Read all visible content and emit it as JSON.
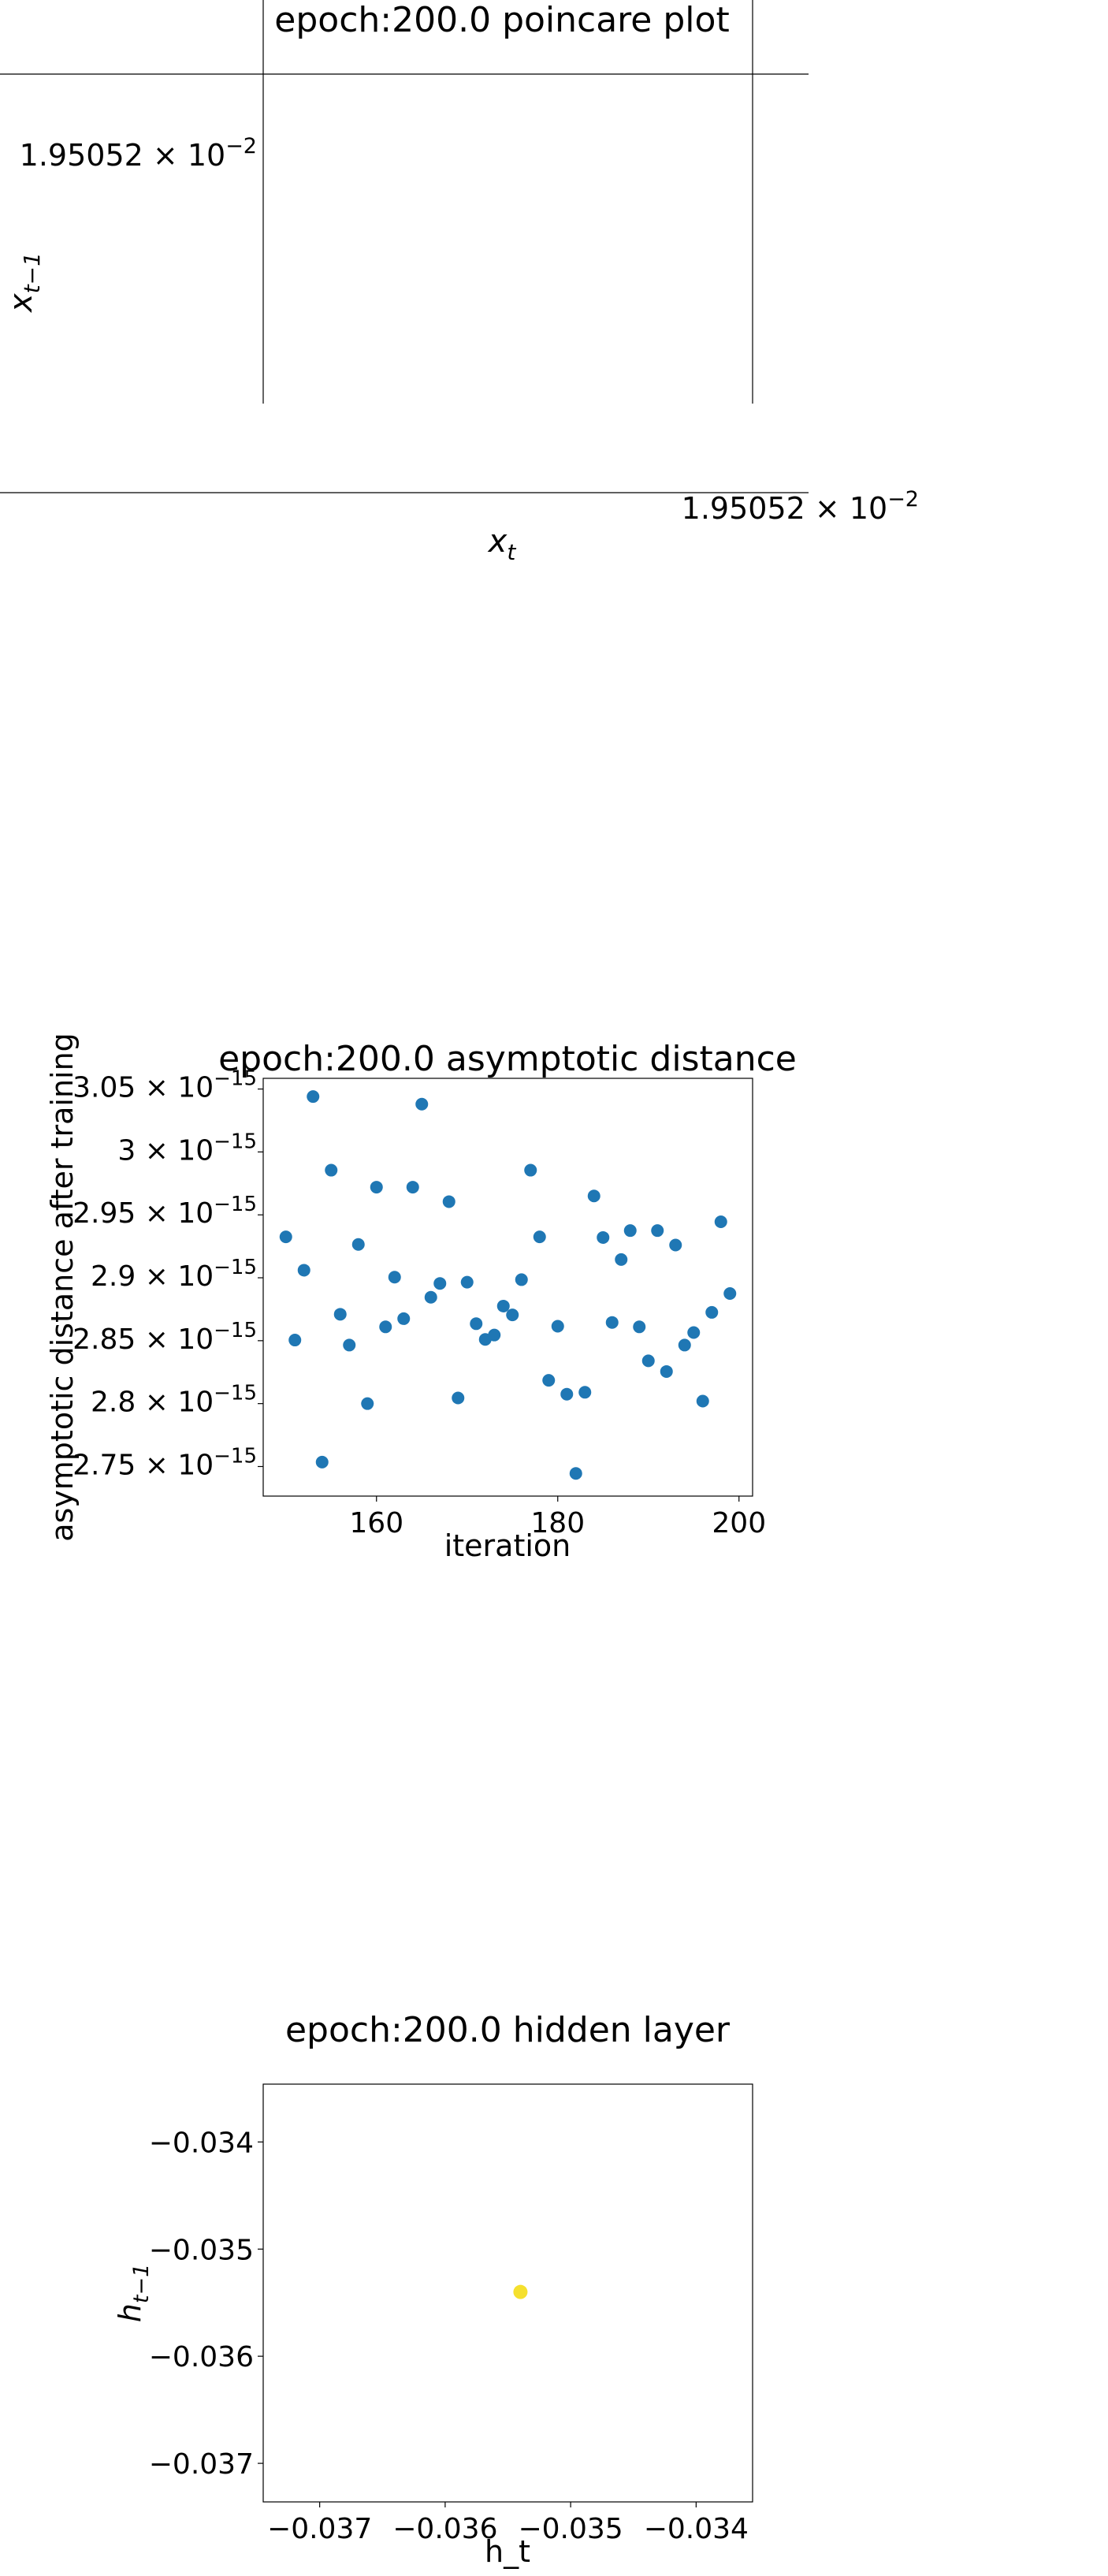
{
  "chart_data": [
    {
      "type": "scatter",
      "title": "epoch:200.0 poincare plot",
      "xlabel": "x",
      "xlabel_sub": "t",
      "ylabel": "x",
      "ylabel_sub": "t−1",
      "xtick": {
        "mantissa": "1.95052",
        "times": "×",
        "base": "10",
        "exp": "−2"
      },
      "ytick": {
        "mantissa": "1.95052",
        "times": "×",
        "base": "10",
        "exp": "−2"
      },
      "x": [],
      "y": []
    },
    {
      "type": "scatter",
      "title": "epoch:200.0 asymptotic distance",
      "xlabel": "iteration",
      "ylabel": "asymptotic distance after training",
      "color": "#1f77b4",
      "xlim": [
        147.5,
        201.5
      ],
      "ylim": [
        2.7265e-15,
        3.0585e-15
      ],
      "xticks": [
        160,
        180,
        200
      ],
      "xtick_labels": [
        "160",
        "180",
        "200"
      ],
      "yticks": [
        2.75e-15,
        2.8e-15,
        2.85e-15,
        2.9e-15,
        2.95e-15,
        3e-15,
        3.05e-15
      ],
      "ytick_labels": [
        {
          "mantissa": "2.75",
          "times": "×",
          "base": "10",
          "exp": "−15"
        },
        {
          "mantissa": "2.8",
          "times": "×",
          "base": "10",
          "exp": "−15"
        },
        {
          "mantissa": "2.85",
          "times": "×",
          "base": "10",
          "exp": "−15"
        },
        {
          "mantissa": "2.9",
          "times": "×",
          "base": "10",
          "exp": "−15"
        },
        {
          "mantissa": "2.95",
          "times": "×",
          "base": "10",
          "exp": "−15"
        },
        {
          "mantissa": "3",
          "times": "×",
          "base": "10",
          "exp": "−15"
        },
        {
          "mantissa": "3.05",
          "times": "×",
          "base": "10",
          "exp": "−15"
        }
      ],
      "x": [
        150,
        151,
        152,
        153,
        154,
        155,
        156,
        157,
        158,
        159,
        160,
        161,
        162,
        163,
        164,
        165,
        166,
        167,
        168,
        169,
        170,
        171,
        172,
        173,
        174,
        175,
        176,
        177,
        178,
        179,
        180,
        181,
        182,
        183,
        184,
        185,
        186,
        187,
        188,
        189,
        190,
        191,
        192,
        193,
        194,
        195,
        196,
        197,
        198,
        199
      ],
      "y": [
        2.9325e-15,
        2.8505e-15,
        2.906e-15,
        3.044e-15,
        2.7535e-15,
        2.9855e-15,
        2.871e-15,
        2.8465e-15,
        2.9265e-15,
        2.8e-15,
        2.972e-15,
        2.861e-15,
        2.9005e-15,
        2.8675e-15,
        2.972e-15,
        3.038e-15,
        2.8845e-15,
        2.8955e-15,
        2.9605e-15,
        2.8045e-15,
        2.8965e-15,
        2.8635e-15,
        2.851e-15,
        2.8545e-15,
        2.8775e-15,
        2.8705e-15,
        2.8985e-15,
        2.9855e-15,
        2.9325e-15,
        2.8185e-15,
        2.8615e-15,
        2.8075e-15,
        2.7445e-15,
        2.809e-15,
        2.965e-15,
        2.932e-15,
        2.8645e-15,
        2.9145e-15,
        2.9375e-15,
        2.861e-15,
        2.834e-15,
        2.9375e-15,
        2.8255e-15,
        2.926e-15,
        2.8465e-15,
        2.8565e-15,
        2.802e-15,
        2.8725e-15,
        2.9445e-15,
        2.8875e-15
      ]
    },
    {
      "type": "scatter",
      "title": "epoch:200.0 hidden layer",
      "xlabel": "h_t",
      "ylabel": "h",
      "ylabel_sub": "t−1",
      "color": "#f5e02e",
      "xlim": [
        -0.03745,
        -0.03355
      ],
      "ylim": [
        -0.03736,
        -0.03346
      ],
      "xticks": [
        -0.037,
        -0.036,
        -0.035,
        -0.034
      ],
      "xtick_labels": [
        "−0.037",
        "−0.036",
        "−0.035",
        "−0.034"
      ],
      "yticks": [
        -0.037,
        -0.036,
        -0.035,
        -0.034
      ],
      "ytick_labels": [
        "−0.037",
        "−0.036",
        "−0.035",
        "−0.034"
      ],
      "x": [
        -0.0354
      ],
      "y": [
        -0.0354
      ]
    }
  ]
}
